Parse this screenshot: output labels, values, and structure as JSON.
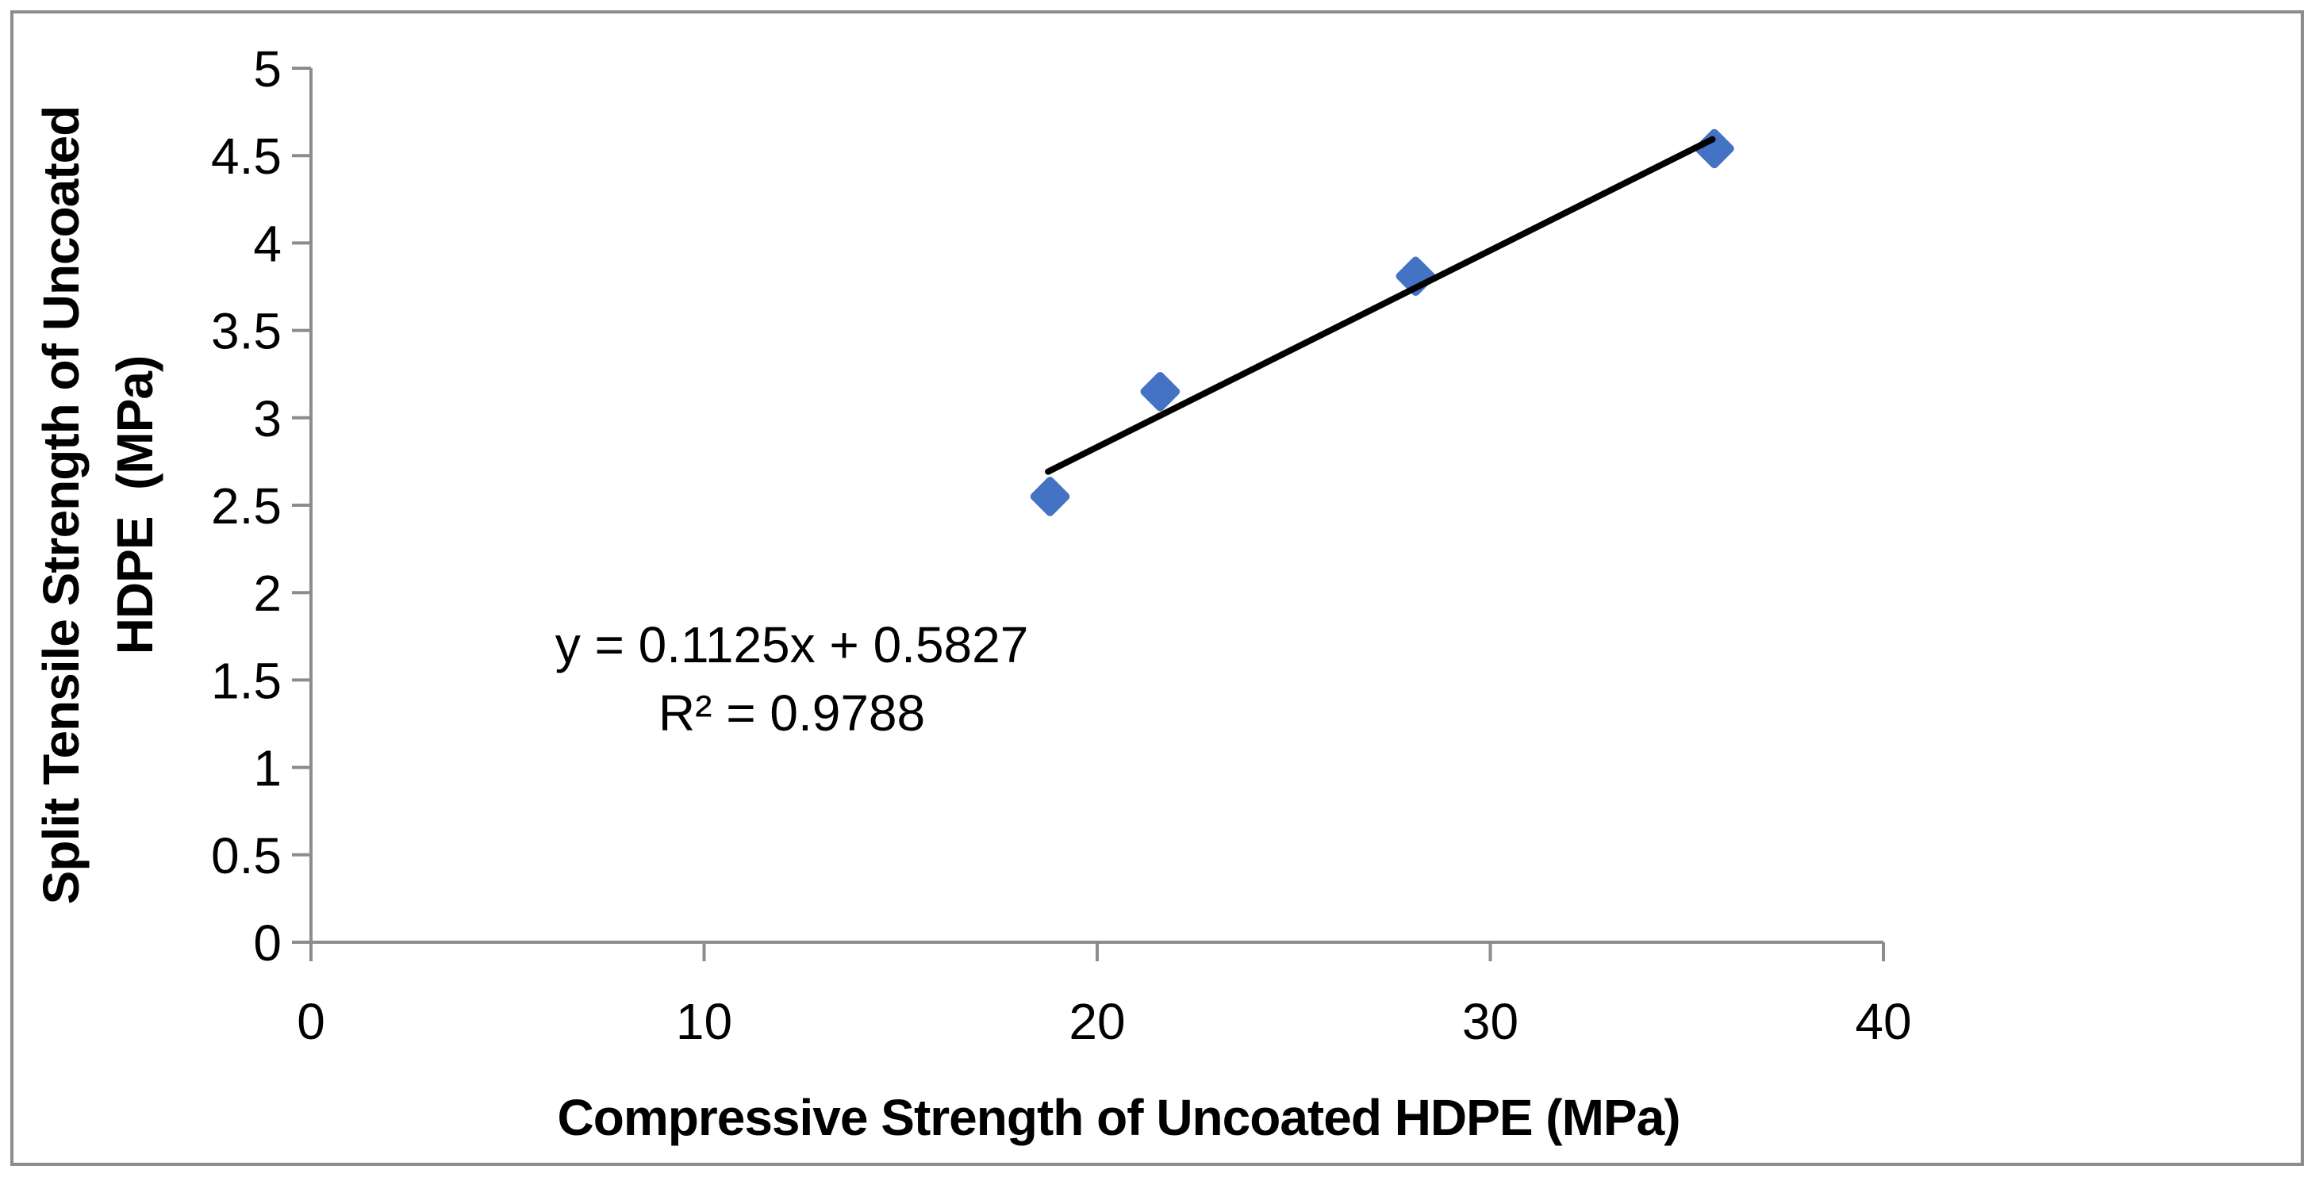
{
  "chart_data": {
    "type": "scatter",
    "title": "",
    "xlabel": "Compressive Strength of Uncoated HDPE (MPa)",
    "ylabel_lines": [
      "Split Tensile Strength of Uncoated",
      "HDPE  (MPa)"
    ],
    "xlim": [
      0,
      40
    ],
    "ylim": [
      0,
      5
    ],
    "grid": false,
    "legend": "none",
    "x_ticks": [
      {
        "value": 0,
        "label": "0"
      },
      {
        "value": 10,
        "label": "10"
      },
      {
        "value": 20,
        "label": "20"
      },
      {
        "value": 30,
        "label": "30"
      },
      {
        "value": 40,
        "label": "40"
      }
    ],
    "y_ticks": [
      {
        "value": 0,
        "label": "0"
      },
      {
        "value": 0.5,
        "label": "0.5"
      },
      {
        "value": 1,
        "label": "1"
      },
      {
        "value": 1.5,
        "label": "1.5"
      },
      {
        "value": 2,
        "label": "2"
      },
      {
        "value": 2.5,
        "label": "2.5"
      },
      {
        "value": 3,
        "label": "3"
      },
      {
        "value": 3.5,
        "label": "3.5"
      },
      {
        "value": 4,
        "label": "4"
      },
      {
        "value": 4.5,
        "label": "4.5"
      },
      {
        "value": 5,
        "label": "5"
      }
    ],
    "points": [
      {
        "x": 18.8,
        "y": 2.55
      },
      {
        "x": 21.6,
        "y": 3.15
      },
      {
        "x": 28.1,
        "y": 3.81
      },
      {
        "x": 35.7,
        "y": 4.54
      }
    ],
    "marker": "diamond",
    "trendline": {
      "slope": 0.1125,
      "intercept": 0.5827,
      "x_start": 18.75,
      "x_end": 35.65,
      "equation_label": "y = 0.1125x + 0.5827",
      "r_squared_label": "R² = 0.9788"
    },
    "colors": {
      "marker": "#4472C4",
      "trendline": "#000000",
      "axis": "#8C8C8C",
      "text": "#000000",
      "frame_border": "#8C8C8C",
      "background": "#FFFFFF"
    }
  }
}
